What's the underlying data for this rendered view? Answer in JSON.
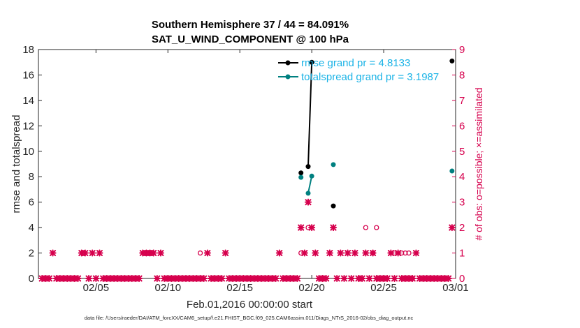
{
  "chart_data": {
    "type": "scatter",
    "title": [
      "Southern Hemisphere 37 / 44 = 84.091%",
      "SAT_U_WIND_COMPONENT @ 100 hPa"
    ],
    "xlabel": "Feb.01,2016 00:00:00 start",
    "ylabel_left": "rmse and totalspread",
    "ylabel_right": "# of obs: o=possible; ×=assimilated",
    "footnote": "data file: /Users/raeder/DAI/ATM_forcXX/CAM6_setup/f.e21.FHIST_BGC.f09_025.CAM6assim.011/Diags_NTrS_2016-02/obs_diag_output.nc",
    "xlim": [
      1,
      30
    ],
    "ylim_left": [
      0,
      18
    ],
    "ylim_right": [
      0,
      9
    ],
    "x_ticks": [
      {
        "day": 5,
        "label": "02/05"
      },
      {
        "day": 10,
        "label": "02/10"
      },
      {
        "day": 15,
        "label": "02/15"
      },
      {
        "day": 20,
        "label": "02/20"
      },
      {
        "day": 25,
        "label": "02/25"
      },
      {
        "day": 30,
        "label": "03/01"
      }
    ],
    "y_left_ticks": [
      0,
      2,
      4,
      6,
      8,
      10,
      12,
      14,
      16,
      18
    ],
    "y_right_ticks": [
      0,
      1,
      2,
      3,
      4,
      5,
      6,
      7,
      8,
      9
    ],
    "grid": false,
    "legend_position": "top-right",
    "series": [
      {
        "name": "rmse grand pr = 4.8133",
        "color": "#000000",
        "axis": "left",
        "marker": "dot",
        "points": [
          [
            19.25,
            8.3
          ],
          [
            19.75,
            8.8
          ],
          [
            20.0,
            17.0
          ],
          [
            21.5,
            5.7
          ],
          [
            29.75,
            17.1
          ]
        ],
        "segments": [
          [
            [
              19.75,
              8.8
            ],
            [
              20.0,
              17.0
            ]
          ]
        ]
      },
      {
        "name": "totalspread grand pr = 3.1987",
        "color": "#008080",
        "axis": "left",
        "marker": "dot",
        "points": [
          [
            19.25,
            7.95
          ],
          [
            19.75,
            6.7
          ],
          [
            20.0,
            8.05
          ],
          [
            21.5,
            8.95
          ],
          [
            29.75,
            8.45
          ]
        ],
        "segments": [
          [
            [
              19.75,
              6.7
            ],
            [
              20.0,
              8.05
            ]
          ]
        ]
      },
      {
        "name": "",
        "color": "#d6004d",
        "axis": "right",
        "marker": "x",
        "points": [
          [
            1.25,
            0
          ],
          [
            1.5,
            0
          ],
          [
            1.75,
            0
          ],
          [
            2,
            1
          ],
          [
            2.25,
            0
          ],
          [
            2.5,
            0
          ],
          [
            2.75,
            0
          ],
          [
            3,
            0
          ],
          [
            3.25,
            0
          ],
          [
            3.5,
            0
          ],
          [
            3.75,
            0
          ],
          [
            4,
            1
          ],
          [
            4.25,
            1
          ],
          [
            4.5,
            0
          ],
          [
            4.75,
            1
          ],
          [
            5,
            0
          ],
          [
            5.25,
            1
          ],
          [
            5.5,
            0
          ],
          [
            5.75,
            0
          ],
          [
            6,
            0
          ],
          [
            6.25,
            0
          ],
          [
            6.5,
            0
          ],
          [
            6.75,
            0
          ],
          [
            7,
            0
          ],
          [
            7.25,
            0
          ],
          [
            7.5,
            0
          ],
          [
            7.75,
            0
          ],
          [
            8,
            0
          ],
          [
            8.25,
            1
          ],
          [
            8.5,
            1
          ],
          [
            8.75,
            1
          ],
          [
            9,
            1
          ],
          [
            9.25,
            0
          ],
          [
            9.5,
            1
          ],
          [
            9.75,
            0
          ],
          [
            10,
            0
          ],
          [
            10.25,
            0
          ],
          [
            10.5,
            0
          ],
          [
            10.75,
            0
          ],
          [
            11,
            0
          ],
          [
            11.25,
            0
          ],
          [
            11.5,
            0
          ],
          [
            11.75,
            0
          ],
          [
            12,
            0
          ],
          [
            12.25,
            0
          ],
          [
            12.5,
            0
          ],
          [
            12.75,
            1
          ],
          [
            13,
            0
          ],
          [
            13.25,
            0
          ],
          [
            13.5,
            0
          ],
          [
            13.75,
            0
          ],
          [
            14,
            1
          ],
          [
            14.25,
            0
          ],
          [
            14.5,
            0
          ],
          [
            14.75,
            0
          ],
          [
            15,
            0
          ],
          [
            15.25,
            0
          ],
          [
            15.5,
            0
          ],
          [
            15.75,
            0
          ],
          [
            16,
            0
          ],
          [
            16.25,
            0
          ],
          [
            16.5,
            0
          ],
          [
            16.75,
            0
          ],
          [
            17,
            0
          ],
          [
            17.25,
            0
          ],
          [
            17.5,
            0
          ],
          [
            17.75,
            1
          ],
          [
            18,
            0
          ],
          [
            18.25,
            0
          ],
          [
            18.5,
            0
          ],
          [
            18.75,
            0
          ],
          [
            19,
            0
          ],
          [
            19.25,
            2
          ],
          [
            19.5,
            1
          ],
          [
            19.75,
            3
          ],
          [
            20,
            2
          ],
          [
            20.25,
            1
          ],
          [
            20.5,
            0
          ],
          [
            20.75,
            0
          ],
          [
            21,
            0
          ],
          [
            21.25,
            1
          ],
          [
            21.5,
            2
          ],
          [
            21.75,
            0
          ],
          [
            22,
            1
          ],
          [
            22.25,
            0
          ],
          [
            22.5,
            1
          ],
          [
            22.75,
            0
          ],
          [
            23,
            1
          ],
          [
            23.25,
            0
          ],
          [
            23.5,
            0
          ],
          [
            23.75,
            1
          ],
          [
            24,
            0
          ],
          [
            24.25,
            1
          ],
          [
            24.5,
            0
          ],
          [
            24.75,
            0
          ],
          [
            25,
            0
          ],
          [
            25.25,
            0
          ],
          [
            25.5,
            1
          ],
          [
            25.75,
            0
          ],
          [
            26,
            1
          ],
          [
            26.25,
            0
          ],
          [
            26.5,
            0
          ],
          [
            26.75,
            0
          ],
          [
            27,
            0
          ],
          [
            27.25,
            1
          ],
          [
            27.5,
            0
          ],
          [
            27.75,
            0
          ],
          [
            28,
            0
          ],
          [
            28.25,
            0
          ],
          [
            28.5,
            0
          ],
          [
            28.75,
            0
          ],
          [
            29,
            0
          ],
          [
            29.25,
            0
          ],
          [
            29.5,
            0
          ],
          [
            29.75,
            2
          ]
        ]
      },
      {
        "name": "",
        "color": "#d6004d",
        "axis": "right",
        "marker": "o",
        "points": [
          [
            12.25,
            1
          ],
          [
            19.25,
            1
          ],
          [
            19.75,
            2
          ],
          [
            23.75,
            2
          ],
          [
            24.5,
            2
          ],
          [
            24.25,
            1
          ],
          [
            25.75,
            1
          ],
          [
            26.25,
            1
          ],
          [
            26.5,
            1
          ],
          [
            26.75,
            1
          ],
          [
            27,
            0
          ]
        ]
      }
    ]
  },
  "colors": {
    "axis": "#262626",
    "right_axis": "#d6004d",
    "legend_text": "#1ab3e6"
  }
}
